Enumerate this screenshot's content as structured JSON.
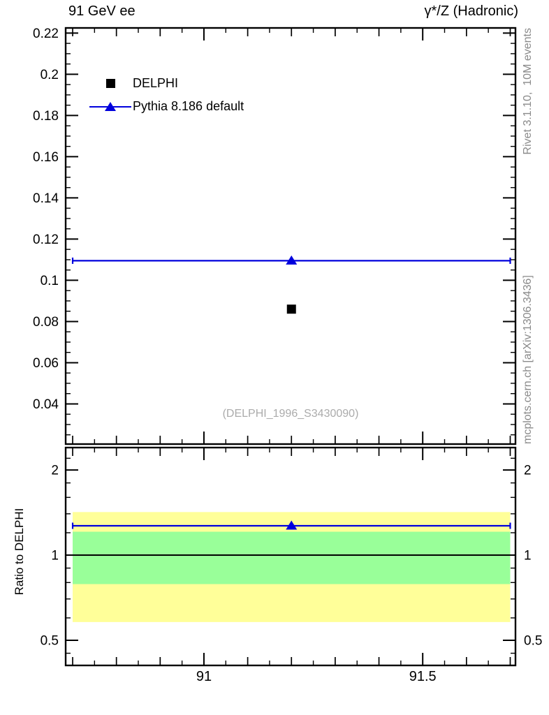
{
  "header": {
    "title_left": "91 GeV ee",
    "title_right": "γ*/Z (Hadronic)"
  },
  "side_notes": {
    "top_right": "Rivet 3.1.10,  10M events",
    "bottom_right": "mcplots.cern.ch [arXiv:1306.3436]"
  },
  "legend": {
    "items": [
      {
        "label": "DELPHI",
        "marker": "black-square"
      },
      {
        "label": "Pythia 8.186 default",
        "marker": "blue-line-triangle"
      }
    ]
  },
  "colors": {
    "mc_blue": "#0000dd",
    "data_black": "#000000",
    "band_yellow": "#ffff99",
    "band_green": "#99ff99",
    "note_gray": "#8a8a8a",
    "watermark_gray": "#ababab"
  },
  "chart_data": [
    {
      "type": "scatter",
      "panel": "main",
      "title": "91 GeV ee",
      "title_right": "γ*/Z (Hadronic)",
      "watermark": "(DELPHI_1996_S3430090)",
      "xlabel": "",
      "ylabel": "",
      "xlim": [
        90.684,
        91.712
      ],
      "ylim": [
        0.0205,
        0.2225
      ],
      "grid": false,
      "x_ticks": {
        "minor_step": 0.05,
        "medium_step": 0.1,
        "major_step": 0.5,
        "labels": [
          {
            "value": 91.0,
            "label": "91"
          },
          {
            "value": 91.5,
            "label": "91.5"
          }
        ]
      },
      "y_ticks": {
        "minor_step": 0.005,
        "major_step": 0.02,
        "labels": [
          {
            "value": 0.04,
            "label": "0.04"
          },
          {
            "value": 0.06,
            "label": "0.06"
          },
          {
            "value": 0.08,
            "label": "0.08"
          },
          {
            "value": 0.1,
            "label": "0.1"
          },
          {
            "value": 0.12,
            "label": "0.12"
          },
          {
            "value": 0.14,
            "label": "0.14"
          },
          {
            "value": 0.16,
            "label": "0.16"
          },
          {
            "value": 0.18,
            "label": "0.18"
          },
          {
            "value": 0.2,
            "label": "0.2"
          },
          {
            "value": 0.22,
            "label": "0.22"
          }
        ]
      },
      "series": [
        {
          "name": "DELPHI",
          "role": "data",
          "marker": "square",
          "color": "#000000",
          "points": [
            {
              "x": 91.2,
              "y": 0.086
            }
          ]
        },
        {
          "name": "Pythia 8.186 default",
          "role": "mc",
          "marker": "triangle",
          "color": "#0000dd",
          "bin": {
            "x_from": 90.7,
            "x_to": 91.7,
            "y": 0.1095
          },
          "marker_x": 91.2
        }
      ]
    },
    {
      "type": "ratio",
      "panel": "ratio",
      "ylabel": "Ratio to DELPHI",
      "yscale": "log",
      "ylim": [
        0.4075,
        2.4
      ],
      "y_ticks": {
        "majors": [
          {
            "value": 0.5,
            "label": "0.5"
          },
          {
            "value": 1,
            "label": "1"
          },
          {
            "value": 2,
            "label": "2"
          }
        ],
        "minors": [
          0.45,
          0.6,
          0.7,
          0.8,
          0.9,
          1.2,
          1.4,
          1.6,
          1.8,
          2.2
        ]
      },
      "bands": [
        {
          "name": "data-uncertainty-2sigma",
          "color": "#ffff99",
          "lo": 0.58,
          "hi": 1.42,
          "x_from": 90.7,
          "x_to": 91.7
        },
        {
          "name": "data-uncertainty-1sigma",
          "color": "#99ff99",
          "lo": 0.79,
          "hi": 1.21,
          "x_from": 90.7,
          "x_to": 91.7
        }
      ],
      "reference_line": {
        "y": 1.0,
        "color": "#000000"
      },
      "mc_line": {
        "y": 1.27,
        "x_from": 90.7,
        "x_to": 91.7,
        "marker_x": 91.2,
        "marker": "triangle",
        "color": "#0000dd"
      }
    }
  ]
}
